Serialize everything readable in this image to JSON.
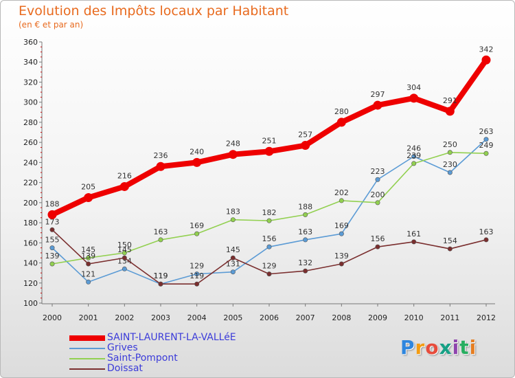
{
  "chart_data": {
    "type": "line",
    "title": "Evolution des Impôts locaux par Habitant",
    "subtitle": "(en € et par an)",
    "xlabel": "",
    "ylabel": "",
    "x": [
      "2000",
      "2001",
      "2002",
      "2003",
      "2004",
      "2005",
      "2006",
      "2007",
      "2008",
      "2009",
      "2010",
      "2011",
      "2012"
    ],
    "ylim": [
      100,
      360
    ],
    "yticks": [
      100,
      120,
      140,
      160,
      180,
      200,
      220,
      240,
      260,
      280,
      300,
      320,
      340,
      360
    ],
    "grid": false,
    "legend": "bottom-left",
    "series": [
      {
        "name": "SAINT-LAURENT-LA-VALLéE",
        "color": "#ee0000",
        "values": [
          188,
          205,
          216,
          236,
          240,
          248,
          251,
          257,
          280,
          297,
          304,
          291,
          342
        ],
        "thick": true
      },
      {
        "name": "Grives",
        "color": "#5b9bd5",
        "values": [
          155,
          121,
          134,
          119,
          129,
          131,
          156,
          163,
          169,
          223,
          246,
          230,
          263
        ]
      },
      {
        "name": "Saint-Pompont",
        "color": "#92d050",
        "values": [
          139,
          145,
          150,
          163,
          169,
          183,
          182,
          188,
          202,
          200,
          239,
          250,
          249
        ]
      },
      {
        "name": "Doissat",
        "color": "#7a2e2e",
        "values": [
          173,
          139,
          145,
          119,
          119,
          145,
          129,
          132,
          139,
          156,
          161,
          154,
          163
        ]
      }
    ]
  },
  "logo": {
    "text": "Proxiti",
    "colors": [
      "#2e86de",
      "#f39c12",
      "#e74c3c",
      "#16a085",
      "#8e44ad",
      "#27ae60",
      "#e67e22"
    ]
  }
}
